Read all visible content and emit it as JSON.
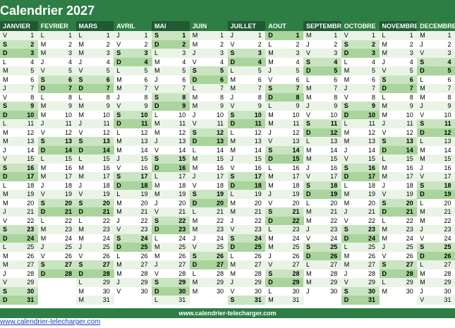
{
  "title": "Calendrier 2027",
  "footer": "www.calendrier-telecharger.com",
  "link": "www.calendrier-telecharger.com",
  "colors": {
    "header": "#1f5a32",
    "band": "#2e7d44",
    "weekend": "#c9e4c0",
    "sunday": "#a9d49c",
    "stripe": "#eaf4e6",
    "link": "#1a3fc7"
  },
  "months": [
    {
      "name": "JANVIER",
      "start": 5,
      "days": 31
    },
    {
      "name": "FEVRIER",
      "start": 1,
      "days": 28
    },
    {
      "name": "MARS",
      "start": 1,
      "days": 31
    },
    {
      "name": "AVRIL",
      "start": 4,
      "days": 30
    },
    {
      "name": "MAI",
      "start": 6,
      "days": 31
    },
    {
      "name": "JUIN",
      "start": 2,
      "days": 30
    },
    {
      "name": "JUILLET",
      "start": 4,
      "days": 31
    },
    {
      "name": "AOUT",
      "start": 0,
      "days": 31
    },
    {
      "name": "SEPTEMBRE",
      "start": 3,
      "days": 30
    },
    {
      "name": "OCTOBRE",
      "start": 5,
      "days": 31
    },
    {
      "name": "NOVEMBRE",
      "start": 1,
      "days": 30
    },
    {
      "name": "DECEMBRE",
      "start": 3,
      "days": 31
    }
  ],
  "day_letters": [
    "D",
    "L",
    "M",
    "M",
    "J",
    "V",
    "S"
  ]
}
